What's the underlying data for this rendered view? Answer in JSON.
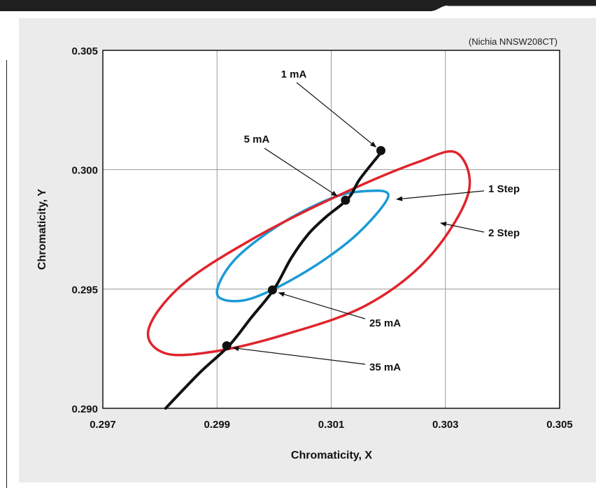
{
  "chart_data": {
    "type": "line",
    "note": "(Nichia NNSW208CT)",
    "xlabel": "Chromaticity, X",
    "ylabel": "Chromaticity, Y",
    "xlim": [
      0.297,
      0.305
    ],
    "ylim": [
      0.29,
      0.305
    ],
    "x_ticks": [
      "0.297",
      "0.299",
      "0.301",
      "0.303",
      "0.305"
    ],
    "y_ticks": [
      "0.290",
      "0.295",
      "0.300",
      "0.305"
    ],
    "grid": true,
    "curve": {
      "x": [
        0.2981,
        0.2987,
        0.2992,
        0.2996,
        0.3,
        0.3003,
        0.3006,
        0.3009,
        0.3013,
        0.3015,
        0.3019
      ],
      "y": [
        0.29,
        0.2915,
        0.2926,
        0.2938,
        0.295,
        0.2963,
        0.2973,
        0.298,
        0.2988,
        0.2996,
        0.3008
      ]
    },
    "points": [
      {
        "label": "1 mA",
        "x": 0.30187,
        "y": 0.3008
      },
      {
        "label": "5 mA",
        "x": 0.30125,
        "y": 0.29872
      },
      {
        "label": "25 mA",
        "x": 0.29997,
        "y": 0.29496
      },
      {
        "label": "35 mA",
        "x": 0.29917,
        "y": 0.29262
      }
    ],
    "ellipses": [
      {
        "label": "1 Step",
        "color": "#1a9ad6",
        "points": [
          [
            0.302,
            0.2989
          ],
          [
            0.3015,
            0.2974
          ],
          [
            0.3008,
            0.2961
          ],
          [
            0.3,
            0.295
          ],
          [
            0.2994,
            0.2945
          ],
          [
            0.299,
            0.2948
          ],
          [
            0.2993,
            0.2962
          ],
          [
            0.3001,
            0.2977
          ],
          [
            0.301,
            0.2988
          ],
          [
            0.3016,
            0.2991
          ]
        ]
      },
      {
        "label": "2 Step",
        "color": "#e0242c",
        "points": [
          [
            0.3032,
            0.3007
          ],
          [
            0.3034,
            0.299
          ],
          [
            0.3027,
            0.2963
          ],
          [
            0.3016,
            0.2943
          ],
          [
            0.3002,
            0.2931
          ],
          [
            0.299,
            0.2924
          ],
          [
            0.2981,
            0.2923
          ],
          [
            0.2978,
            0.2933
          ],
          [
            0.2984,
            0.2952
          ],
          [
            0.2997,
            0.2972
          ],
          [
            0.3012,
            0.299
          ],
          [
            0.3025,
            0.3003
          ]
        ]
      }
    ]
  }
}
